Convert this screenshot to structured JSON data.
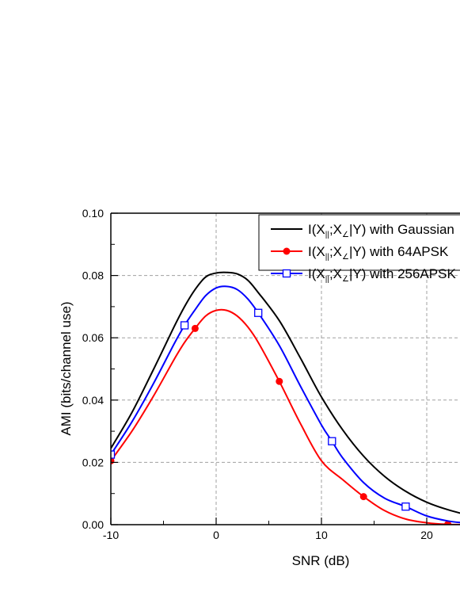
{
  "chart_data": {
    "type": "line",
    "xlabel": "SNR (dB)",
    "ylabel": "AMI (bits/channel use)",
    "xlim": [
      -10,
      25
    ],
    "ylim": [
      0,
      0.1
    ],
    "x_ticks": [
      -10,
      0,
      10,
      20
    ],
    "x_tick_labels": [
      "-10",
      "0",
      "10",
      "20"
    ],
    "y_ticks": [
      0,
      0.02,
      0.04,
      0.06,
      0.08,
      0.1
    ],
    "y_tick_labels": [
      "0.00",
      "0.02",
      "0.04",
      "0.06",
      "0.08",
      "0.10"
    ],
    "grid": true,
    "legend_position": "top-right",
    "series": [
      {
        "name": "I(X||;X∠|Y) with Gaussian",
        "color": "#000000",
        "marker": "none",
        "x": [
          -10,
          -8,
          -6,
          -4,
          -3,
          -2,
          -1,
          0,
          1,
          2,
          3,
          4,
          6,
          8,
          10,
          12,
          14,
          16,
          18,
          20,
          22,
          24
        ],
        "y": [
          0.0245,
          0.036,
          0.0495,
          0.0635,
          0.07,
          0.0755,
          0.0795,
          0.0808,
          0.081,
          0.0805,
          0.0785,
          0.0745,
          0.0655,
          0.0535,
          0.041,
          0.0305,
          0.022,
          0.0155,
          0.0107,
          0.0072,
          0.0048,
          0.003
        ]
      },
      {
        "name": "I(X||;X∠|Y) with 64APSK",
        "color": "#ff0000",
        "marker": "circle",
        "x": [
          -10,
          -8,
          -6,
          -4,
          -3,
          -2,
          -1,
          0,
          1,
          2,
          3,
          4,
          6,
          8,
          10,
          12,
          14,
          16,
          18,
          20,
          22,
          24
        ],
        "y": [
          0.0205,
          0.03,
          0.041,
          0.053,
          0.0585,
          0.063,
          0.067,
          0.0688,
          0.0688,
          0.067,
          0.0635,
          0.0585,
          0.046,
          0.0325,
          0.0205,
          0.0145,
          0.009,
          0.0045,
          0.0018,
          0.0006,
          0.0001,
          0.0
        ],
        "marker_x": [
          -10,
          -2,
          6,
          14,
          22
        ],
        "marker_y": [
          0.0205,
          0.063,
          0.046,
          0.009,
          0.0001
        ]
      },
      {
        "name": "I(X||;X∠|Y) with 256APSK",
        "color": "#0000ff",
        "marker": "square",
        "x": [
          -10,
          -8,
          -6,
          -4,
          -3,
          -2,
          -1,
          0,
          1,
          2,
          3,
          4,
          6,
          8,
          10,
          11,
          12,
          14,
          16,
          18,
          20,
          22,
          24
        ],
        "y": [
          0.0225,
          0.033,
          0.045,
          0.058,
          0.064,
          0.069,
          0.0735,
          0.076,
          0.0765,
          0.0755,
          0.0725,
          0.068,
          0.0575,
          0.0445,
          0.032,
          0.0268,
          0.0215,
          0.0135,
          0.0085,
          0.0058,
          0.0028,
          0.0012,
          0.0004
        ],
        "marker_x": [
          -10,
          -3,
          4,
          11,
          18
        ],
        "marker_y": [
          0.0225,
          0.064,
          0.068,
          0.0268,
          0.0058
        ]
      }
    ]
  },
  "legend": {
    "entries": [
      {
        "prefix": "I(X",
        "sub1": "||",
        "mid": ";X",
        "sub2": "∠",
        "suffix": "|Y) with Gaussian"
      },
      {
        "prefix": "I(X",
        "sub1": "||",
        "mid": ";X",
        "sub2": "∠",
        "suffix": "|Y) with 64APSK"
      },
      {
        "prefix": "I(X",
        "sub1": "||",
        "mid": ";X",
        "sub2": "∠",
        "suffix": "|Y) with 256APSK"
      }
    ]
  }
}
